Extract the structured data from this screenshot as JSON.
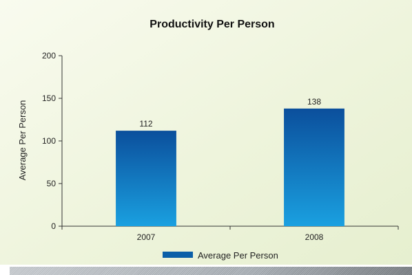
{
  "chart_data": {
    "type": "bar",
    "title": "Productivity Per Person",
    "ylabel": "Average Per Person",
    "xlabel": "",
    "categories": [
      "2007",
      "2008"
    ],
    "series": [
      {
        "name": "Average Per Person",
        "values": [
          112,
          138
        ]
      }
    ],
    "data_labels": [
      "112",
      "138"
    ],
    "ylim": [
      0,
      200
    ],
    "yticks": [
      0,
      50,
      100,
      150,
      200
    ],
    "ytick_labels": [
      "0",
      "50",
      "100",
      "150",
      "200"
    ],
    "grid": false,
    "legend": "bottom-center",
    "colors": {
      "bar_top": "#0b4f9c",
      "bar_bottom": "#1aa0e0",
      "legend_swatch": "#0b5fa8",
      "axis": "#333333",
      "background": "#eef4dc"
    }
  }
}
